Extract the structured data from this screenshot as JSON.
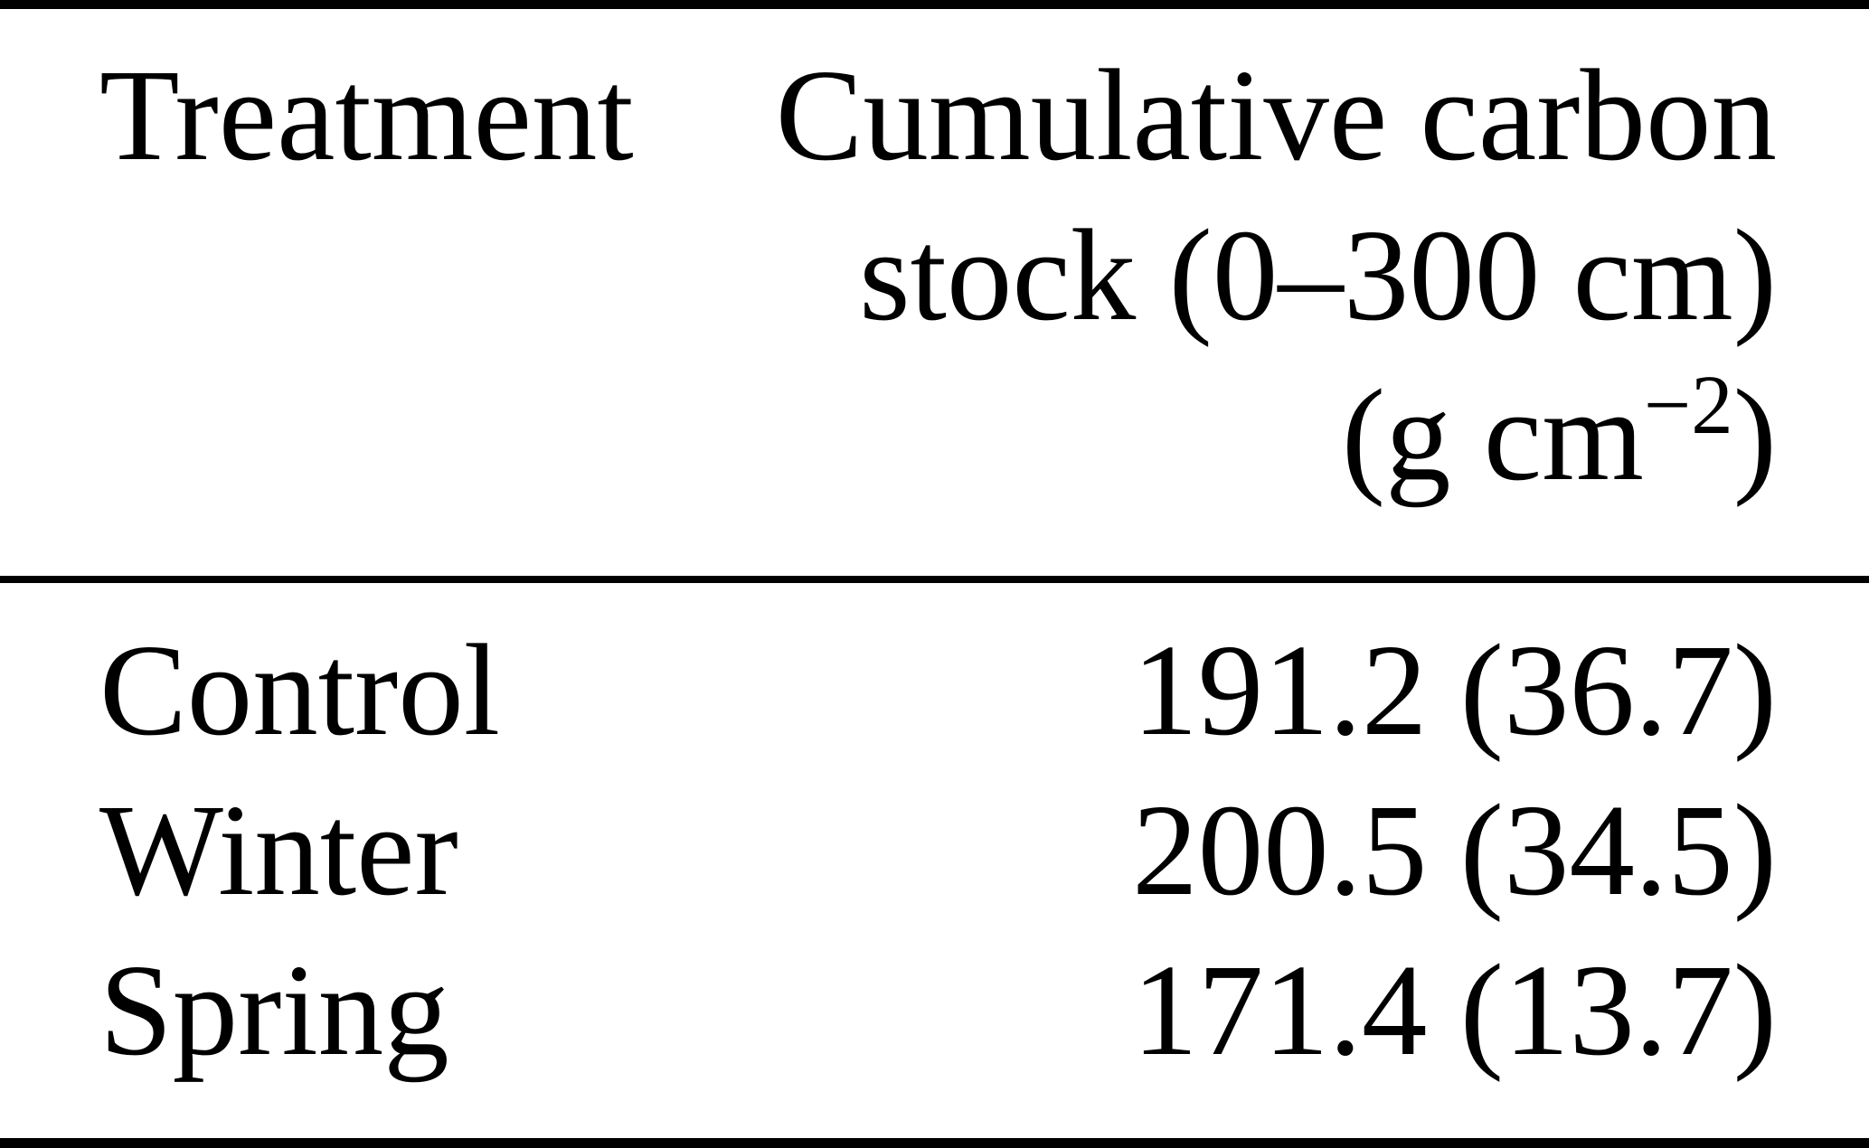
{
  "figure": {
    "background_color": "#ffffff",
    "text_color": "#000000",
    "rule_color": "#000000"
  },
  "table": {
    "header": {
      "treatment_label": "Treatment",
      "value_label_line1": "Cumulative carbon",
      "value_label_line2": "stock (0–300 cm)",
      "unit_prefix": "(g cm",
      "unit_exponent": "−2",
      "unit_suffix": ")"
    },
    "rows": [
      {
        "treatment": "Control",
        "value": "191.2 (36.7)"
      },
      {
        "treatment": "Winter",
        "value": "200.5 (34.5)"
      },
      {
        "treatment": "Spring",
        "value": "171.4 (13.7)"
      }
    ]
  },
  "chart_data": {
    "type": "table",
    "title": "",
    "columns": [
      "Treatment",
      "Cumulative carbon stock (0–300 cm) (g cm−2)"
    ],
    "rows": [
      [
        "Control",
        "191.2 (36.7)"
      ],
      [
        "Winter",
        "200.5 (34.5)"
      ],
      [
        "Spring",
        "171.4 (13.7)"
      ]
    ],
    "values_parsed": {
      "Control": {
        "mean": 191.2,
        "sd": 36.7
      },
      "Winter": {
        "mean": 200.5,
        "sd": 34.5
      },
      "Spring": {
        "mean": 171.4,
        "sd": 13.7
      }
    }
  }
}
